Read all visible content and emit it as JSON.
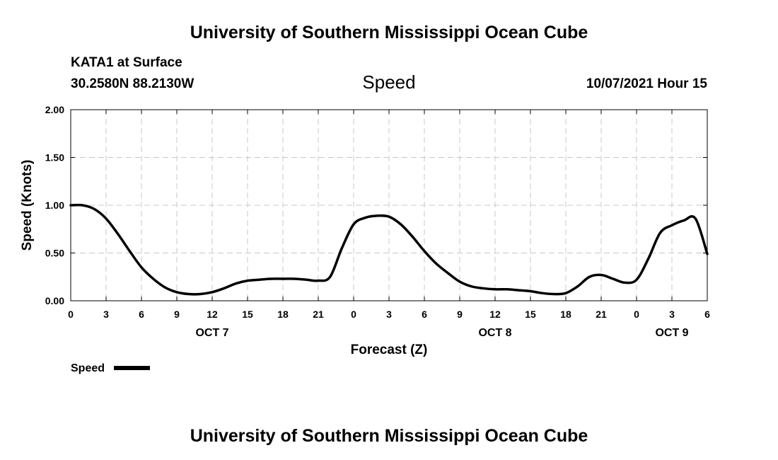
{
  "header": {
    "title_top": "University of Southern Mississippi Ocean Cube",
    "title_bottom": "University of Southern Mississippi Ocean Cube",
    "station": "KATA1 at Surface",
    "coords": "30.2580N  88.2130W",
    "variable": "Speed",
    "datetime": "10/07/2021 Hour 15"
  },
  "legend": {
    "label": "Speed",
    "color": "#000000"
  },
  "chart_data": {
    "type": "line",
    "xlabel": "Forecast (Z)",
    "ylabel": "Speed (Knots)",
    "xlim": [
      0,
      54
    ],
    "ylim": [
      0,
      2
    ],
    "grid": true,
    "legend_position": "bottom-left",
    "x_ticks": [
      0,
      3,
      6,
      9,
      12,
      15,
      18,
      21,
      24,
      27,
      30,
      33,
      36,
      39,
      42,
      45,
      48,
      51,
      54
    ],
    "x_tick_labels": [
      "0",
      "3",
      "6",
      "9",
      "12",
      "15",
      "18",
      "21",
      "0",
      "3",
      "6",
      "9",
      "12",
      "15",
      "18",
      "21",
      "0",
      "3",
      "6"
    ],
    "y_ticks": [
      0,
      0.5,
      1.0,
      1.5,
      2.0
    ],
    "y_tick_labels": [
      "0.00",
      "0.50",
      "1.00",
      "1.50",
      "2.00"
    ],
    "day_labels": [
      {
        "x": 12,
        "label": "OCT 7"
      },
      {
        "x": 36,
        "label": "OCT 8"
      },
      {
        "x": 51,
        "label": "OCT 9"
      }
    ],
    "series": [
      {
        "name": "Speed",
        "color": "#000000",
        "x": [
          0,
          1,
          2,
          3,
          4,
          5,
          6,
          7,
          8,
          9,
          10,
          11,
          12,
          13,
          14,
          15,
          16,
          17,
          18,
          19,
          20,
          21,
          22,
          23,
          24,
          25,
          26,
          27,
          28,
          29,
          30,
          31,
          32,
          33,
          34,
          35,
          36,
          37,
          38,
          39,
          40,
          41,
          42,
          43,
          44,
          45,
          46,
          47,
          48,
          49,
          50,
          51,
          52,
          53,
          54
        ],
        "y": [
          1.0,
          1.0,
          0.96,
          0.86,
          0.7,
          0.52,
          0.35,
          0.23,
          0.14,
          0.09,
          0.07,
          0.07,
          0.09,
          0.13,
          0.18,
          0.21,
          0.22,
          0.23,
          0.23,
          0.23,
          0.22,
          0.21,
          0.25,
          0.55,
          0.8,
          0.87,
          0.89,
          0.88,
          0.8,
          0.67,
          0.52,
          0.39,
          0.29,
          0.2,
          0.15,
          0.13,
          0.12,
          0.12,
          0.11,
          0.1,
          0.08,
          0.07,
          0.08,
          0.15,
          0.25,
          0.27,
          0.23,
          0.19,
          0.22,
          0.44,
          0.71,
          0.79,
          0.84,
          0.86,
          0.49
        ]
      }
    ]
  }
}
